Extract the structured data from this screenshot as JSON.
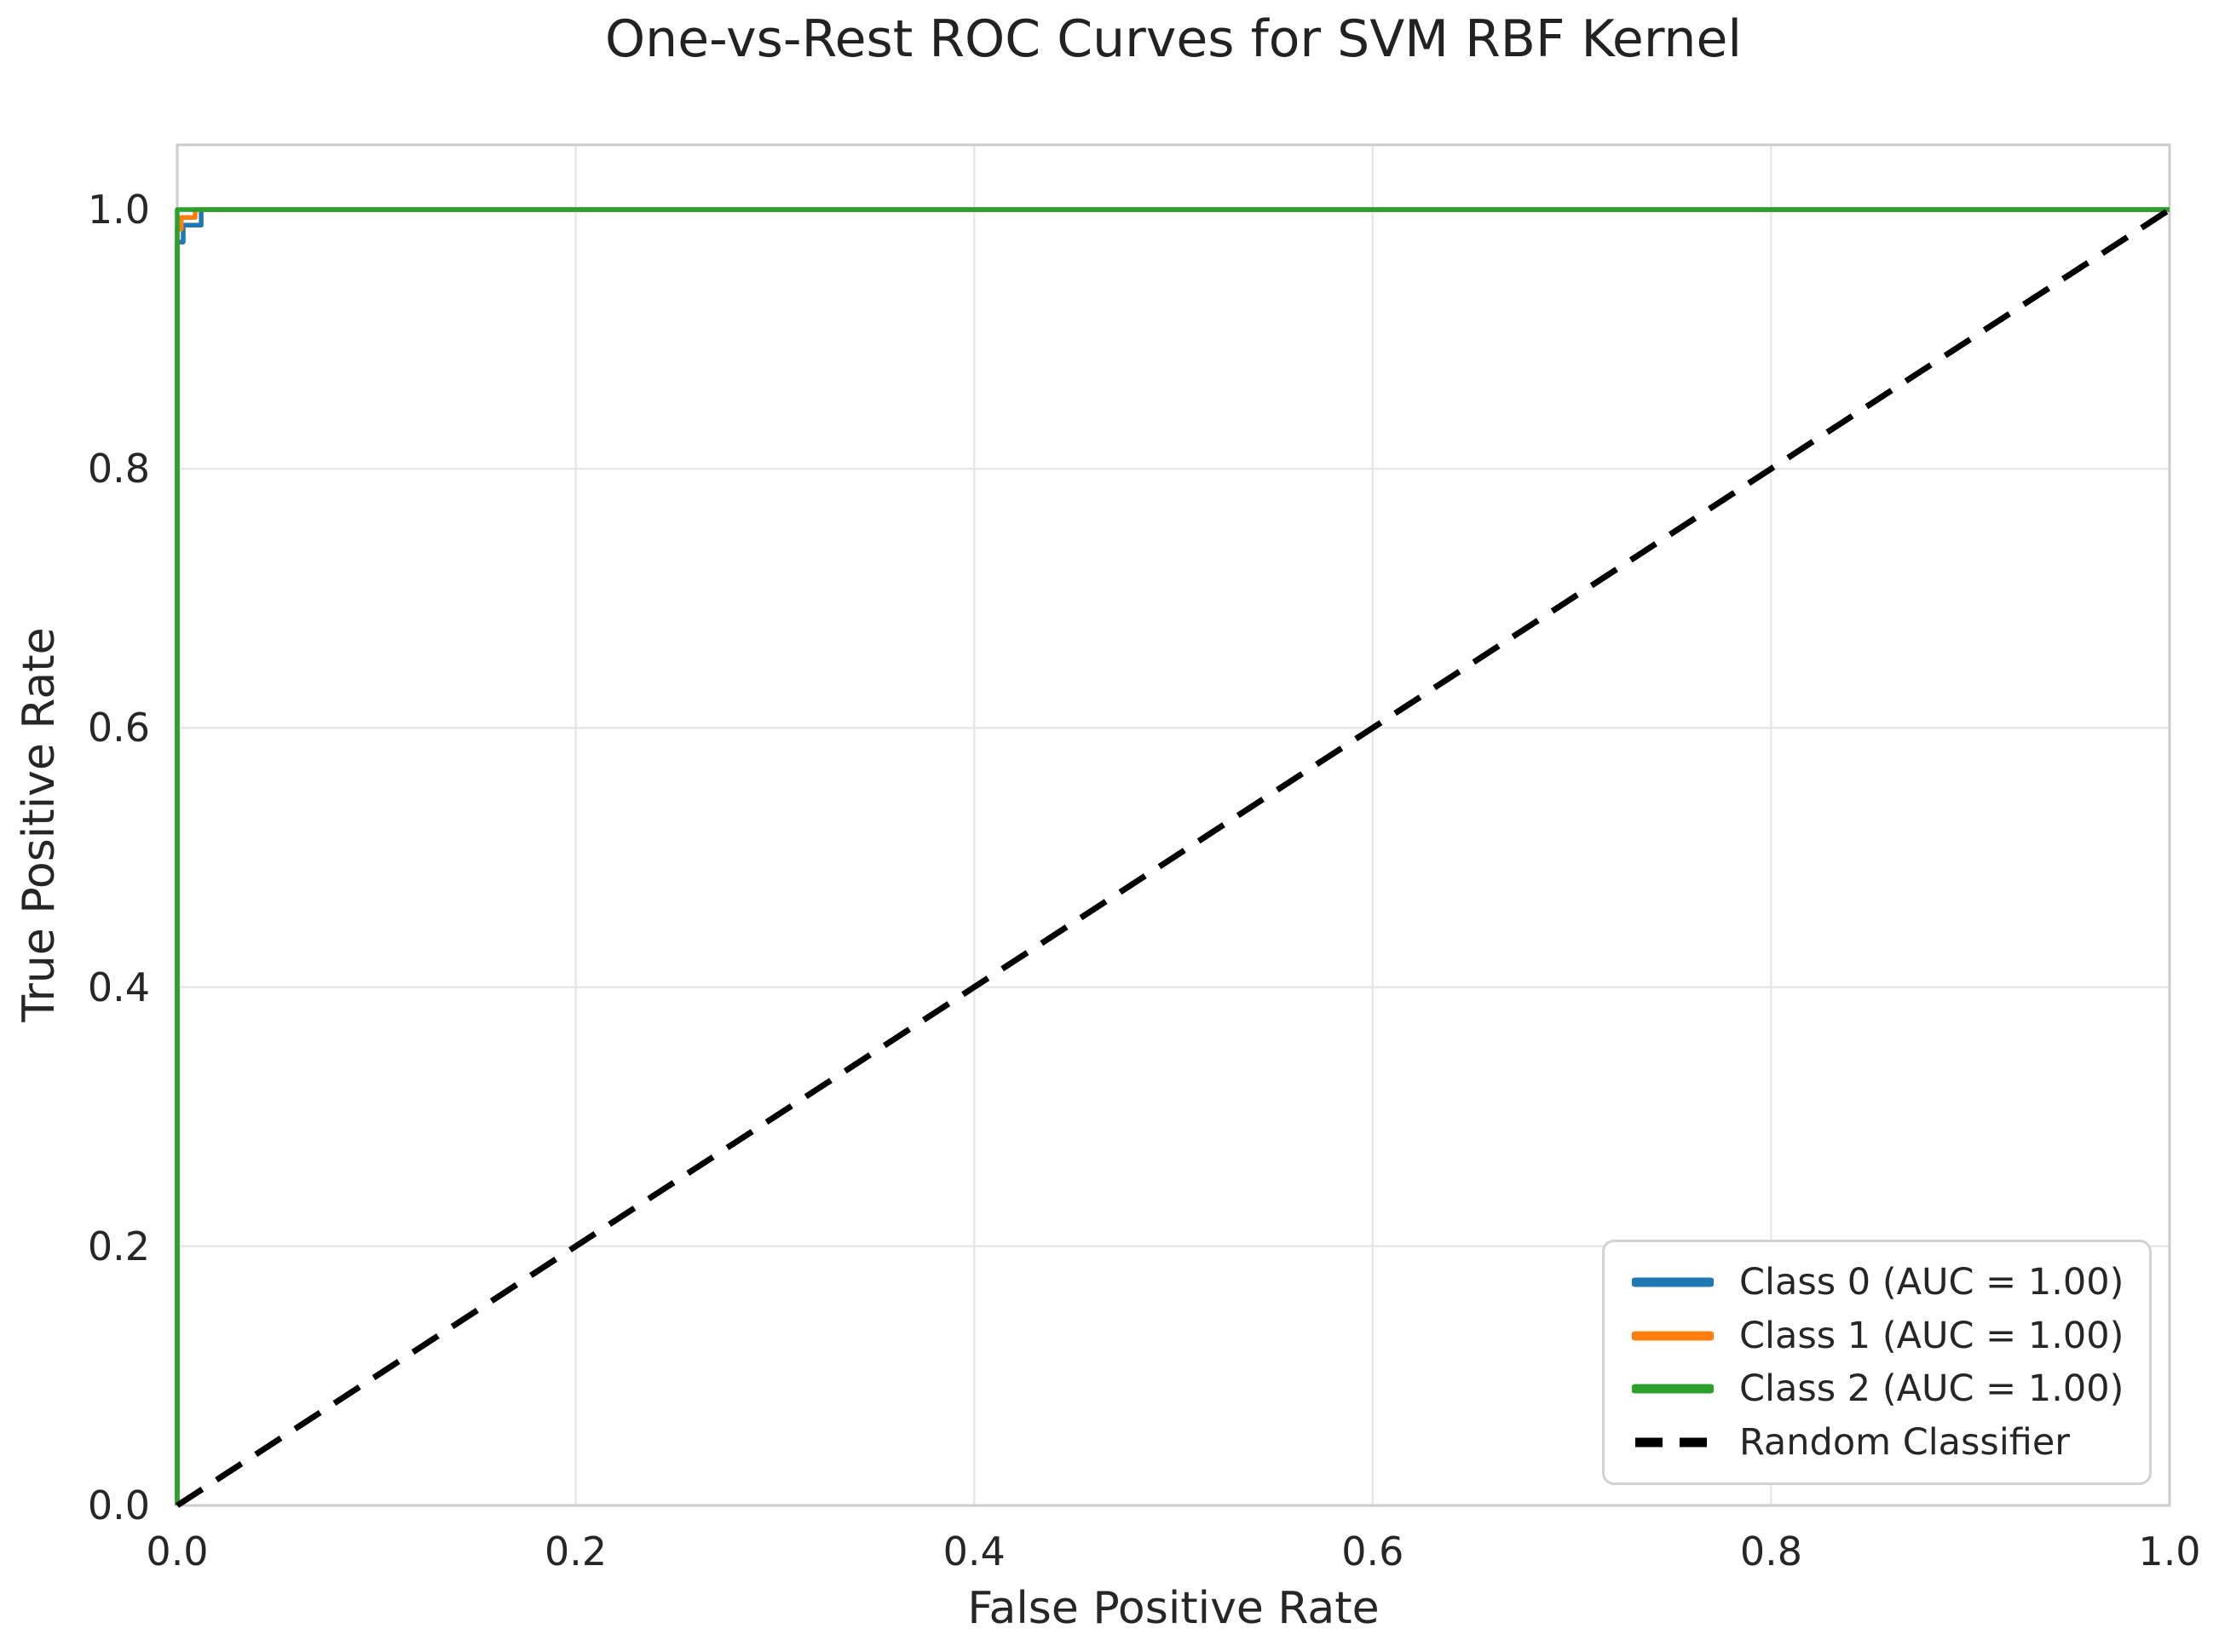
{
  "chart_data": {
    "type": "line",
    "title": "One-vs-Rest ROC Curves for SVM RBF Kernel",
    "xlabel": "False Positive Rate",
    "ylabel": "True Positive Rate",
    "xlim": [
      0.0,
      1.0
    ],
    "ylim": [
      0.0,
      1.05
    ],
    "xticks": [
      0.0,
      0.2,
      0.4,
      0.6,
      0.8,
      1.0
    ],
    "xtick_labels": [
      "0.0",
      "0.2",
      "0.4",
      "0.6",
      "0.8",
      "1.0"
    ],
    "yticks": [
      0.0,
      0.2,
      0.4,
      0.6,
      0.8,
      1.0
    ],
    "ytick_labels": [
      "0.0",
      "0.2",
      "0.4",
      "0.6",
      "0.8",
      "1.0"
    ],
    "grid": true,
    "legend_position": "lower right",
    "series": [
      {
        "name": "Class 0 (AUC = 1.00)",
        "color": "#1f77b4",
        "dashed": false,
        "points": [
          [
            0.0,
            0.0
          ],
          [
            0.0,
            0.975
          ],
          [
            0.003,
            0.975
          ],
          [
            0.003,
            0.988
          ],
          [
            0.012,
            0.988
          ],
          [
            0.012,
            1.0
          ],
          [
            1.0,
            1.0
          ]
        ]
      },
      {
        "name": "Class 1 (AUC = 1.00)",
        "color": "#ff7f0e",
        "dashed": false,
        "points": [
          [
            0.0,
            0.0
          ],
          [
            0.0,
            0.985
          ],
          [
            0.002,
            0.985
          ],
          [
            0.002,
            0.994
          ],
          [
            0.009,
            0.994
          ],
          [
            0.009,
            1.0
          ],
          [
            1.0,
            1.0
          ]
        ]
      },
      {
        "name": "Class 2 (AUC = 1.00)",
        "color": "#2ca02c",
        "dashed": false,
        "points": [
          [
            0.0,
            0.0
          ],
          [
            0.0,
            1.0
          ],
          [
            1.0,
            1.0
          ]
        ]
      },
      {
        "name": "Random Classifier",
        "color": "#000000",
        "dashed": true,
        "points": [
          [
            0.0,
            0.0
          ],
          [
            1.0,
            1.0
          ]
        ]
      }
    ],
    "style": {
      "background": "#ffffff",
      "grid_color": "#e7e7e7",
      "spine_color": "#cccccc",
      "text_color": "#262626",
      "curve_width": 5.5,
      "dash_width": 7,
      "dash_pattern": [
        35,
        20
      ]
    }
  }
}
